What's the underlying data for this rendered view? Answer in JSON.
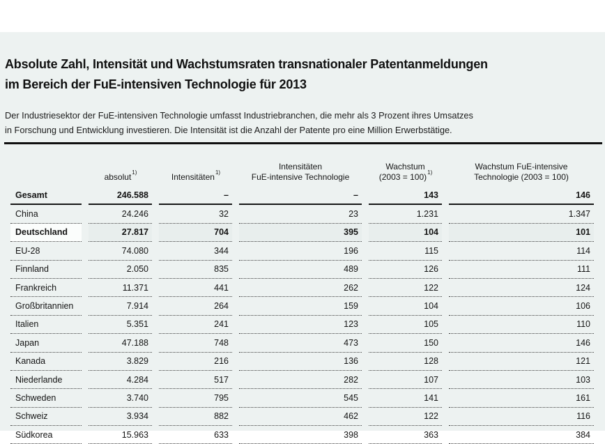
{
  "header": {
    "title_line1": "Absolute Zahl, Intensität und Wachstumsraten transnationaler Patentanmeldungen",
    "title_line2": "im Bereich der FuE-intensiven Technologie für 2013",
    "subtitle_line1": "Der Industriesektor der FuE-intensiven Technologie umfasst Industriebranchen, die mehr als 3 Prozent ihres Umsatzes",
    "subtitle_line2": "in Forschung und Entwicklung investieren. Die Intensität ist die Anzahl der Patente pro eine Million Erwerbstätige."
  },
  "table": {
    "columns": [
      {
        "lines": [
          {
            "text": ""
          }
        ]
      },
      {
        "lines": [
          {
            "text": "absolut",
            "sup": "1)"
          }
        ]
      },
      {
        "lines": [
          {
            "text": "Intensitäten",
            "sup": "1)"
          }
        ]
      },
      {
        "lines": [
          {
            "text": "Intensitäten"
          },
          {
            "text": "FuE-intensive Technologie"
          }
        ]
      },
      {
        "lines": [
          {
            "text": "Wachstum"
          },
          {
            "text": "(2003 = 100)",
            "sup": "1)"
          }
        ]
      },
      {
        "lines": [
          {
            "text": "Wachstum FuE-intensive"
          },
          {
            "text": "Technologie (2003 = 100)"
          }
        ]
      }
    ],
    "rows": [
      {
        "name": "Gesamt",
        "total": true,
        "bold": true,
        "values": [
          "246.588",
          "–",
          "–",
          "143",
          "146"
        ]
      },
      {
        "name": "China",
        "values": [
          "24.246",
          "32",
          "23",
          "1.231",
          "1.347"
        ]
      },
      {
        "name": "Deutschland",
        "bold": true,
        "highlight": true,
        "values": [
          "27.817",
          "704",
          "395",
          "104",
          "101"
        ]
      },
      {
        "name": "EU-28",
        "values": [
          "74.080",
          "344",
          "196",
          "115",
          "114"
        ]
      },
      {
        "name": "Finnland",
        "values": [
          "2.050",
          "835",
          "489",
          "126",
          "111"
        ]
      },
      {
        "name": "Frankreich",
        "values": [
          "11.371",
          "441",
          "262",
          "122",
          "124"
        ]
      },
      {
        "name": "Großbritannien",
        "values": [
          "7.914",
          "264",
          "159",
          "104",
          "106"
        ]
      },
      {
        "name": "Italien",
        "values": [
          "5.351",
          "241",
          "123",
          "105",
          "110"
        ]
      },
      {
        "name": "Japan",
        "values": [
          "47.188",
          "748",
          "473",
          "150",
          "146"
        ]
      },
      {
        "name": "Kanada",
        "values": [
          "3.829",
          "216",
          "136",
          "128",
          "121"
        ]
      },
      {
        "name": "Niederlande",
        "values": [
          "4.284",
          "517",
          "282",
          "107",
          "103"
        ]
      },
      {
        "name": "Schweden",
        "values": [
          "3.740",
          "795",
          "545",
          "141",
          "161"
        ]
      },
      {
        "name": "Schweiz",
        "values": [
          "3.934",
          "882",
          "462",
          "122",
          "116"
        ]
      },
      {
        "name": "Südkorea",
        "clipped": true,
        "values": [
          "15.963",
          "633",
          "398",
          "363",
          "384"
        ]
      }
    ]
  },
  "chart_data": {
    "type": "table",
    "title": "Absolute Zahl, Intensität und Wachstumsraten transnationaler Patentanmeldungen im Bereich der FuE-intensiven Technologie für 2013",
    "columns": [
      "absolut 1)",
      "Intensitäten 1)",
      "Intensitäten FuE-intensive Technologie",
      "Wachstum (2003 = 100) 1)",
      "Wachstum FuE-intensive Technologie (2003 = 100)"
    ],
    "rows": [
      [
        "Gesamt",
        "246.588",
        "–",
        "–",
        "143",
        "146"
      ],
      [
        "China",
        "24.246",
        "32",
        "23",
        "1.231",
        "1.347"
      ],
      [
        "Deutschland",
        "27.817",
        "704",
        "395",
        "104",
        "101"
      ],
      [
        "EU-28",
        "74.080",
        "344",
        "196",
        "115",
        "114"
      ],
      [
        "Finnland",
        "2.050",
        "835",
        "489",
        "126",
        "111"
      ],
      [
        "Frankreich",
        "11.371",
        "441",
        "262",
        "122",
        "124"
      ],
      [
        "Großbritannien",
        "7.914",
        "264",
        "159",
        "104",
        "106"
      ],
      [
        "Italien",
        "5.351",
        "241",
        "123",
        "105",
        "110"
      ],
      [
        "Japan",
        "47.188",
        "748",
        "473",
        "150",
        "146"
      ],
      [
        "Kanada",
        "3.829",
        "216",
        "136",
        "128",
        "121"
      ],
      [
        "Niederlande",
        "4.284",
        "517",
        "282",
        "107",
        "103"
      ],
      [
        "Schweden",
        "3.740",
        "795",
        "545",
        "141",
        "161"
      ],
      [
        "Schweiz",
        "3.934",
        "882",
        "462",
        "122",
        "116"
      ],
      [
        "Südkorea",
        "15.963",
        "633",
        "398",
        "363",
        "384"
      ]
    ]
  },
  "colors": {
    "page_background": "#edf2f1",
    "top_band": "#ffffff",
    "highlight_row": "#e8eeed",
    "highlight_label_cell": "#fbfdfc",
    "rule": "#0f0f0f",
    "text": "#141414"
  }
}
